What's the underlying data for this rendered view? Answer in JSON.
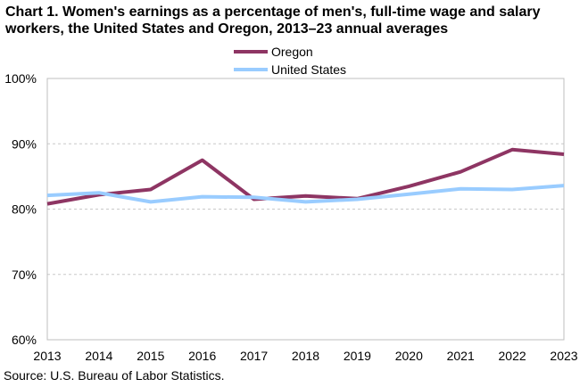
{
  "chart_data": {
    "type": "line",
    "title": "Chart 1. Women's earnings as a percentage of men's, full-time wage and salary workers, the United States and Oregon, 2013–23 annual averages",
    "source": "Source:  U.S. Bureau of Labor Statistics.",
    "x": [
      "2013",
      "2014",
      "2015",
      "2016",
      "2017",
      "2018",
      "2019",
      "2020",
      "2021",
      "2022",
      "2023"
    ],
    "ylim": [
      60,
      100
    ],
    "yticks": [
      "60%",
      "70%",
      "80%",
      "90%",
      "100%"
    ],
    "ytick_values": [
      60,
      70,
      80,
      90,
      100
    ],
    "grid": true,
    "legend": "top-center",
    "series": [
      {
        "name": "Oregon",
        "color": "#8e3563",
        "values": [
          80.8,
          82.2,
          83.0,
          87.5,
          81.5,
          82.0,
          81.6,
          83.5,
          85.7,
          89.1,
          88.4
        ]
      },
      {
        "name": "United States",
        "color": "#99ccff",
        "values": [
          82.1,
          82.5,
          81.1,
          81.9,
          81.8,
          81.1,
          81.5,
          82.3,
          83.1,
          83.0,
          83.6
        ]
      }
    ]
  }
}
